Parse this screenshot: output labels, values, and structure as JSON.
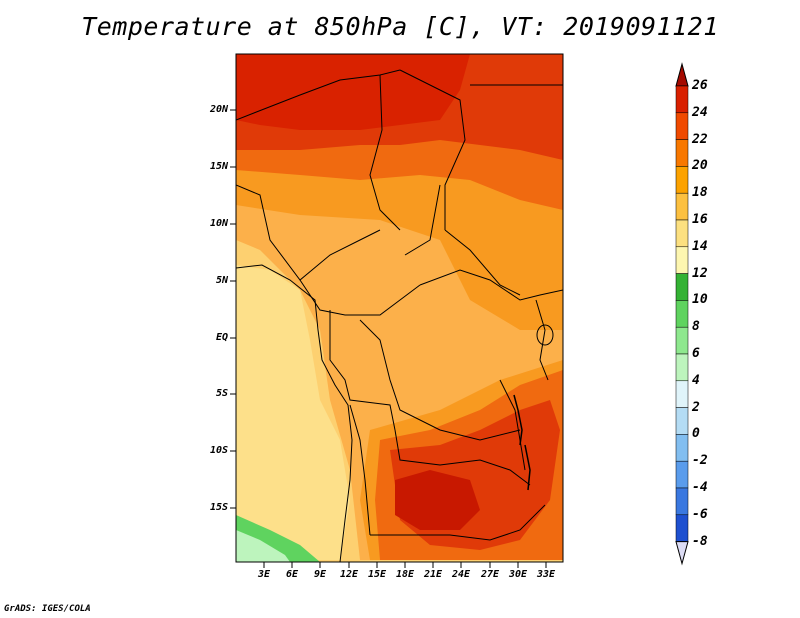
{
  "title": "Temperature at 850hPa [C], VT: 2019091121",
  "footer": "GrADS: IGES/COLA",
  "map": {
    "lat_labels": [
      "20N",
      "15N",
      "10N",
      "5N",
      "EQ",
      "5S",
      "10S",
      "15S"
    ],
    "lon_labels": [
      "3E",
      "6E",
      "9E",
      "12E",
      "15E",
      "18E",
      "21E",
      "24E",
      "27E",
      "30E",
      "33E"
    ]
  },
  "colorbar": {
    "labels": [
      "26",
      "24",
      "22",
      "20",
      "18",
      "16",
      "14",
      "12",
      "10",
      "8",
      "6",
      "4",
      "2",
      "0",
      "-2",
      "-4",
      "-6",
      "-8"
    ],
    "colors": [
      "#a50a00",
      "#d92000",
      "#f04a00",
      "#f87800",
      "#fca200",
      "#fcc040",
      "#fce080",
      "#fdf6b0",
      "#34b234",
      "#5fd35f",
      "#8ee88e",
      "#bdf4bd",
      "#e0f4fa",
      "#b4dcf4",
      "#82bef0",
      "#5a9cec",
      "#3a78e0",
      "#1e50d0",
      "#0a2aa8",
      "#05157a",
      "#dcdcf4"
    ]
  }
}
